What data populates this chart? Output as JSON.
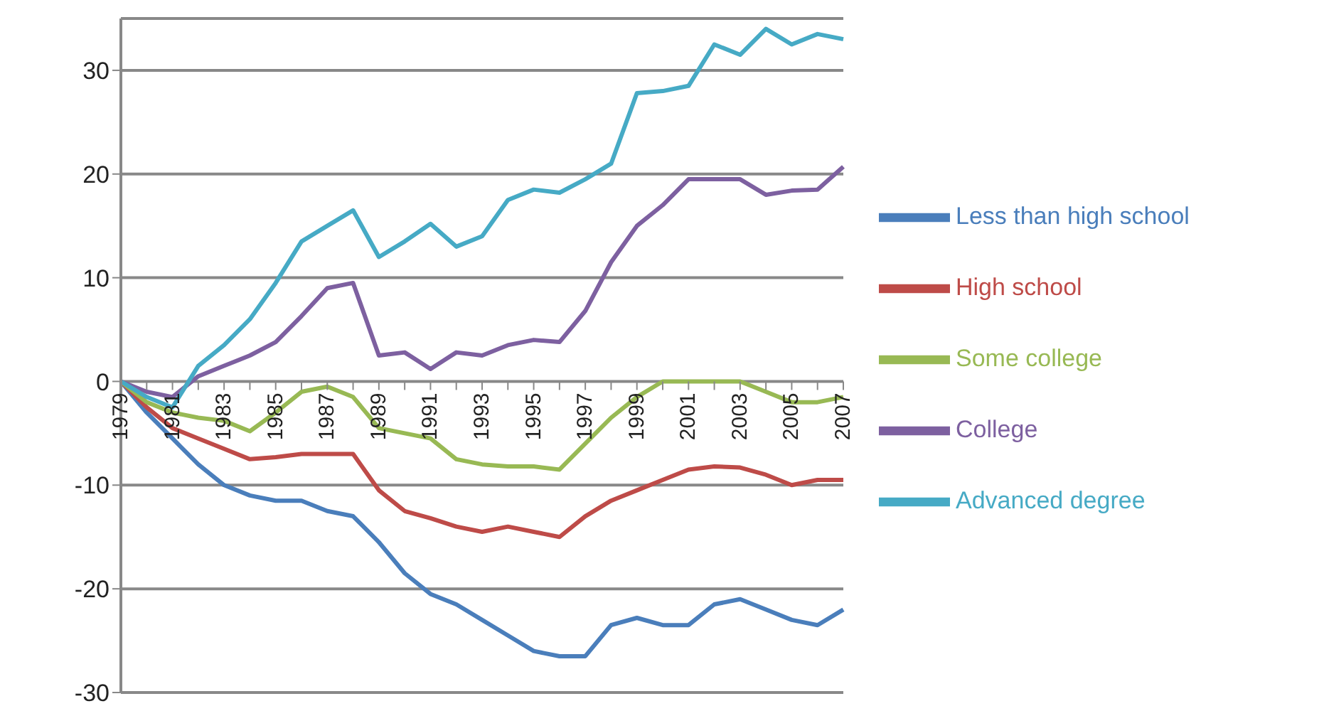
{
  "chart_data": {
    "type": "line",
    "categories": [
      "1979",
      null,
      "1981",
      null,
      "1983",
      null,
      "1985",
      null,
      "1987",
      null,
      "1989",
      null,
      "1991",
      null,
      "1993",
      null,
      "1995",
      null,
      "1997",
      null,
      "1999",
      null,
      "2001",
      null,
      "2003",
      null,
      "2005",
      null,
      "2007"
    ],
    "series": [
      {
        "name": "Less than high school",
        "color": "#4a7ebb",
        "values": [
          0,
          -3,
          -5.5,
          -8,
          -10,
          -11,
          -11.5,
          -11.5,
          -12.5,
          -13,
          -15.5,
          -18.5,
          -20.5,
          -21.5,
          -23,
          -24.5,
          -26,
          -26.5,
          -26.5,
          -23.5,
          -22.8,
          -23.5,
          -23.5,
          -21.5,
          -21,
          -22,
          -23,
          -23.5,
          -22
        ]
      },
      {
        "name": "High school",
        "color": "#be4b48",
        "values": [
          0,
          -2.5,
          -4.5,
          -5.5,
          -6.5,
          -7.5,
          -7.3,
          -7,
          -7,
          -7,
          -10.5,
          -12.5,
          -13.2,
          -14,
          -14.5,
          -14,
          -14.5,
          -15,
          -13,
          -11.5,
          -10.5,
          -9.5,
          -8.5,
          -8.2,
          -8.3,
          -9,
          -10,
          -9.5,
          -9.5
        ]
      },
      {
        "name": "Some college",
        "color": "#98b954",
        "values": [
          0,
          -2,
          -3,
          -3.5,
          -3.8,
          -4.8,
          -3,
          -1,
          -0.5,
          -1.5,
          -4.5,
          -5,
          -5.5,
          -7.5,
          -8,
          -8.2,
          -8.2,
          -8.5,
          -6,
          -3.5,
          -1.5,
          0,
          0,
          0,
          0,
          -1,
          -2,
          -2,
          -1.5
        ]
      },
      {
        "name": "College",
        "color": "#7d60a0",
        "values": [
          0,
          -1,
          -1.5,
          0.5,
          1.5,
          2.5,
          3.8,
          6.3,
          9,
          9.5,
          2.5,
          2.8,
          1.2,
          2.8,
          2.5,
          3.5,
          4,
          3.8,
          6.8,
          11.5,
          15,
          17,
          19.5,
          19.5,
          19.5,
          18,
          18.4,
          18.5,
          20.7
        ]
      },
      {
        "name": "Advanced degree",
        "color": "#46aac5",
        "values": [
          0,
          -1.5,
          -2.5,
          1.5,
          3.5,
          6,
          9.5,
          13.5,
          15,
          16.5,
          12,
          13.5,
          15.2,
          13,
          14,
          17.5,
          18.5,
          18.2,
          19.5,
          21,
          27.8,
          28,
          28.5,
          32.5,
          31.5,
          34,
          32.5,
          33.5,
          33
        ]
      }
    ],
    "ylim": [
      -30,
      35
    ],
    "yticks": [
      -30,
      -20,
      -10,
      0,
      10,
      20,
      30
    ],
    "grid": "y",
    "legend": "right",
    "marker": "none",
    "line_style": "solid"
  }
}
